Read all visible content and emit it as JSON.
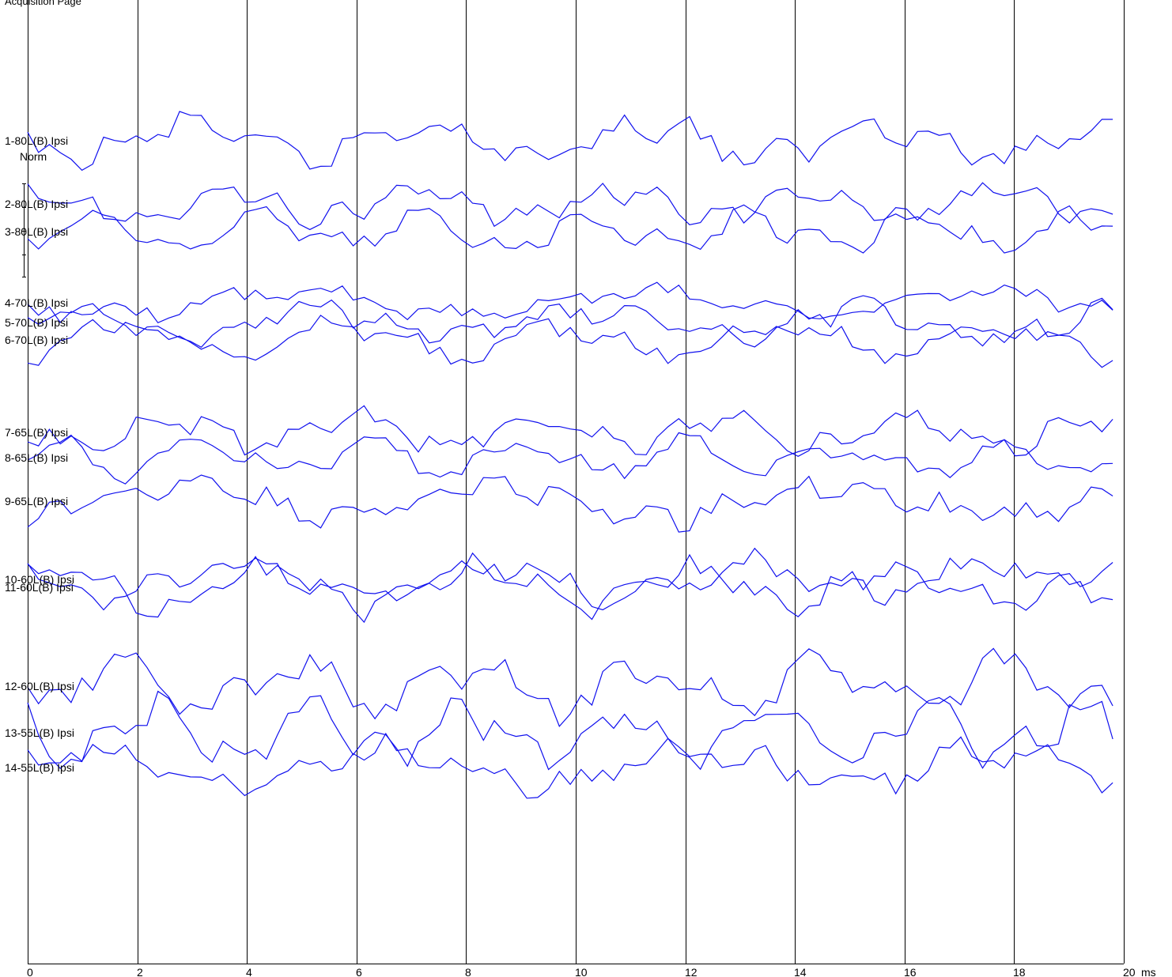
{
  "page": {
    "title": "Acquisition Page",
    "unit": "ms"
  },
  "chart_data": {
    "type": "line",
    "title": "Acquisition Page",
    "xlabel": "ms",
    "ylabel": "",
    "xlim": [
      0,
      20
    ],
    "x_ticks": [
      0,
      2,
      4,
      6,
      8,
      10,
      12,
      14,
      16,
      18,
      20
    ],
    "grid": true,
    "line_color": "#1010ee",
    "norm_label": "Norm",
    "traces": [
      {
        "label": "1-80L(B) Ipsi",
        "baseline": 178,
        "seed": 1,
        "amp": 38
      },
      {
        "label": "2-80L(B) Ipsi",
        "baseline": 258,
        "seed": 2,
        "amp": 30
      },
      {
        "label": "3-80L(B) Ipsi",
        "baseline": 293,
        "seed": 3,
        "amp": 32
      },
      {
        "label": "4-70L(B) Ipsi",
        "baseline": 383,
        "seed": 4,
        "amp": 26
      },
      {
        "label": "5-70L(B) Ipsi",
        "baseline": 408,
        "seed": 5,
        "amp": 30
      },
      {
        "label": "6-70L(B) Ipsi",
        "baseline": 430,
        "seed": 6,
        "amp": 32
      },
      {
        "label": "7-65L(B) Ipsi",
        "baseline": 547,
        "seed": 7,
        "amp": 30
      },
      {
        "label": "8-65L(B) Ipsi",
        "baseline": 579,
        "seed": 8,
        "amp": 30
      },
      {
        "label": "9-65L(B) Ipsi",
        "baseline": 634,
        "seed": 9,
        "amp": 34
      },
      {
        "label": "10-60L(B) Ipsi",
        "baseline": 733,
        "seed": 10,
        "amp": 34
      },
      {
        "label": "11-60L(B) Ipsi",
        "baseline": 743,
        "seed": 11,
        "amp": 38
      },
      {
        "label": "12-60L(B) Ipsi",
        "baseline": 868,
        "seed": 12,
        "amp": 44
      },
      {
        "label": "13-55L(B) Ipsi",
        "baseline": 927,
        "seed": 13,
        "amp": 48
      },
      {
        "label": "14-55L(B) Ipsi",
        "baseline": 971,
        "seed": 14,
        "amp": 40
      }
    ]
  }
}
